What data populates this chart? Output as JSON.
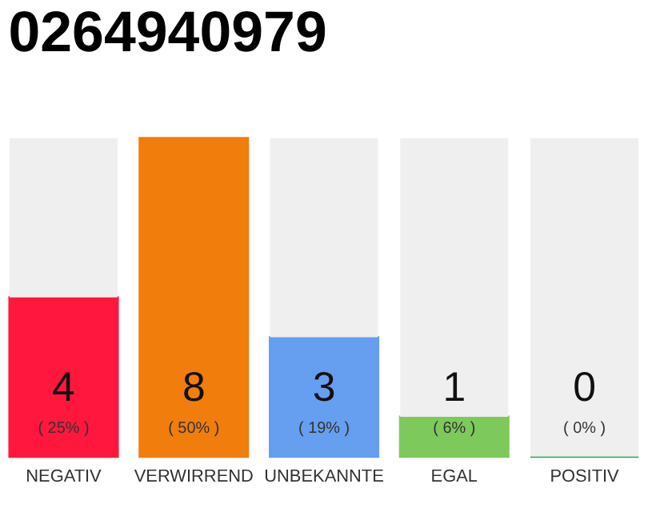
{
  "chart_data": {
    "type": "bar",
    "title": "0264940979",
    "stacked": true,
    "categories": [
      "NEGATIV",
      "VERWIRREND",
      "UNBEKANNTE",
      "EGAL",
      "POSITIV"
    ],
    "series": [
      {
        "colors": [
          "#ff173d",
          "#f07d0c",
          "#669ef0",
          "#7ec95c",
          "#2aa84a"
        ],
        "values": [
          4,
          8,
          3,
          1,
          0
        ],
        "value_labels": [
          "4",
          "8",
          "3",
          "1",
          "0"
        ]
      },
      {
        "color": "#efefef",
        "values": [
          4,
          0,
          5,
          7,
          8
        ]
      }
    ],
    "annotations": [
      "( 25% )",
      "( 50% )",
      "( 19% )",
      "( 6% )",
      "( 0% )"
    ],
    "tick_labels": "x"
  }
}
